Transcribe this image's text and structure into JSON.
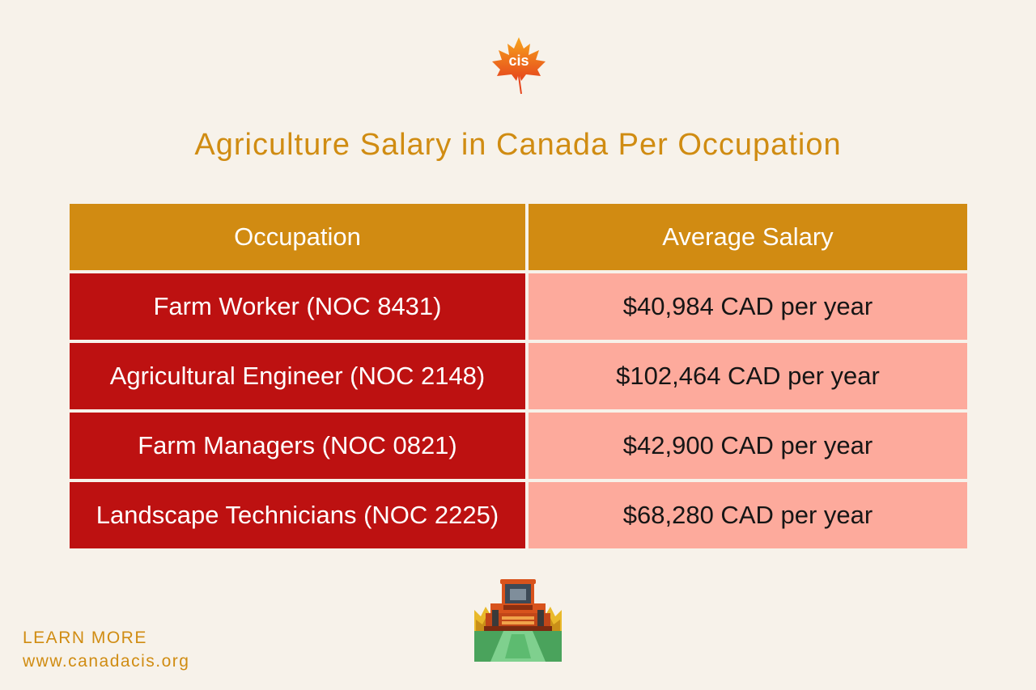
{
  "title": "Agriculture Salary in Canada Per Occupation",
  "logo": {
    "text": "cis"
  },
  "table": {
    "headers": [
      "Occupation",
      "Average Salary"
    ],
    "rows": [
      {
        "occupation": "Farm Worker (NOC 8431)",
        "salary": "$40,984 CAD per year"
      },
      {
        "occupation": "Agricultural Engineer (NOC 2148)",
        "salary": "$102,464 CAD per year"
      },
      {
        "occupation": "Farm Managers (NOC 0821)",
        "salary": "$42,900 CAD per year"
      },
      {
        "occupation": "Landscape Technicians (NOC 2225)",
        "salary": "$68,280 CAD per year"
      }
    ]
  },
  "footer": {
    "cta": "LEARN MORE",
    "url": "www.canadacis.org"
  },
  "colors": {
    "background": "#f7f2ea",
    "accent_gold": "#d18b12",
    "occupation_red": "#bd1111",
    "salary_pink": "#fdaa9c"
  },
  "icons": [
    "maple-leaf-logo-icon",
    "tractor-icon"
  ]
}
